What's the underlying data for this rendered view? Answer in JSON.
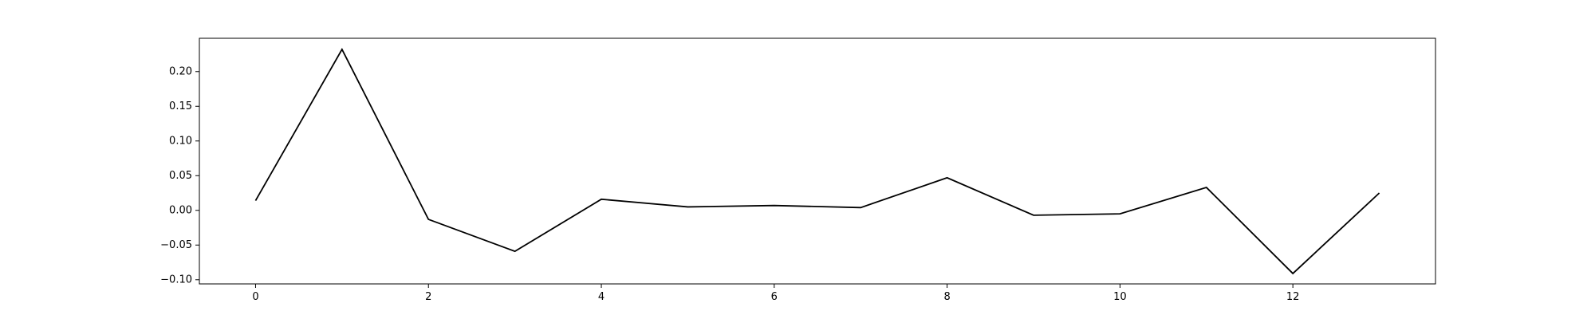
{
  "chart_data": {
    "type": "line",
    "title": "",
    "xlabel": "",
    "ylabel": "",
    "x": [
      0,
      1,
      2,
      3,
      4,
      5,
      6,
      7,
      8,
      9,
      10,
      11,
      12,
      13
    ],
    "series": [
      {
        "values": [
          0.014,
          0.232,
          -0.013,
          -0.059,
          0.016,
          0.005,
          0.007,
          0.004,
          0.047,
          -0.007,
          -0.005,
          0.033,
          -0.091,
          0.025
        ],
        "color": "#000000"
      }
    ],
    "xlim": [
      -0.65,
      13.65
    ],
    "ylim": [
      -0.106,
      0.248
    ],
    "xticks": [
      0,
      2,
      4,
      6,
      8,
      10,
      12
    ],
    "xtick_labels": [
      "0",
      "2",
      "4",
      "6",
      "8",
      "10",
      "12"
    ],
    "yticks": [
      -0.1,
      -0.05,
      0.0,
      0.05,
      0.1,
      0.15,
      0.2
    ],
    "ytick_labels": [
      "−0.10",
      "−0.05",
      "0.00",
      "0.05",
      "0.10",
      "0.15",
      "0.20"
    ],
    "grid": false,
    "legend": "none"
  }
}
